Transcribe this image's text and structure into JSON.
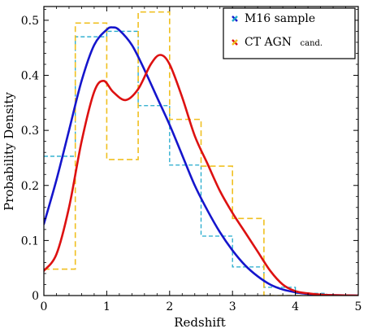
{
  "chart_data": {
    "type": "line",
    "xlabel": "Redshift",
    "ylabel": "Probability Density",
    "xlim": [
      0,
      5
    ],
    "ylim": [
      0,
      0.525
    ],
    "x_ticks": [
      "0",
      "1",
      "2",
      "3",
      "4",
      "5"
    ],
    "y_ticks": [
      "0",
      "0.1",
      "0.2",
      "0.3",
      "0.4",
      "0.5"
    ],
    "legend": {
      "placement": "top-right",
      "entries": [
        {
          "name": "M16 sample",
          "color": "#1515cc"
        },
        {
          "name_main": "CT AGN",
          "name_small": "cand.",
          "color": "#dd1111"
        }
      ]
    },
    "series": [
      {
        "name": "M16 sample",
        "kind": "smooth-curve",
        "color": "#1515cc",
        "x": [
          0,
          0.2,
          0.4,
          0.6,
          0.8,
          1.0,
          1.1,
          1.2,
          1.4,
          1.6,
          1.8,
          2.0,
          2.2,
          2.4,
          2.6,
          2.8,
          3.0,
          3.2,
          3.4,
          3.6,
          3.8,
          4.0,
          4.2,
          4.5,
          5.0
        ],
        "y": [
          0.13,
          0.21,
          0.3,
          0.39,
          0.455,
          0.483,
          0.487,
          0.482,
          0.455,
          0.41,
          0.36,
          0.31,
          0.255,
          0.2,
          0.155,
          0.115,
          0.082,
          0.055,
          0.035,
          0.02,
          0.011,
          0.006,
          0.003,
          0.001,
          0.0
        ]
      },
      {
        "name": "CT AGN cand.",
        "kind": "smooth-curve",
        "color": "#dd1111",
        "x": [
          0,
          0.2,
          0.4,
          0.6,
          0.8,
          0.95,
          1.1,
          1.3,
          1.5,
          1.7,
          1.85,
          2.0,
          2.2,
          2.4,
          2.6,
          2.8,
          3.0,
          3.2,
          3.4,
          3.6,
          3.8,
          4.0,
          4.2,
          4.5,
          5.0
        ],
        "y": [
          0.045,
          0.075,
          0.16,
          0.28,
          0.37,
          0.39,
          0.37,
          0.355,
          0.375,
          0.42,
          0.437,
          0.42,
          0.36,
          0.29,
          0.24,
          0.19,
          0.15,
          0.115,
          0.08,
          0.045,
          0.02,
          0.008,
          0.004,
          0.001,
          0.0
        ]
      },
      {
        "name": "M16 sample histogram",
        "kind": "step",
        "color": "#22aacc",
        "bin_edges": [
          0,
          0.5,
          1.0,
          1.5,
          2.0,
          2.5,
          3.0,
          3.5,
          4.0,
          4.5,
          5.0
        ],
        "values": [
          0.253,
          0.47,
          0.48,
          0.345,
          0.237,
          0.108,
          0.052,
          0.015,
          0.004,
          0.0
        ]
      },
      {
        "name": "CT AGN cand. histogram",
        "kind": "step",
        "color": "#f0c020",
        "bin_edges": [
          0,
          0.5,
          1.0,
          1.5,
          2.0,
          2.5,
          3.0,
          3.5,
          4.0,
          4.5,
          5.0
        ],
        "values": [
          0.048,
          0.495,
          0.247,
          0.515,
          0.32,
          0.235,
          0.14,
          0.0,
          0.0,
          0.0
        ]
      }
    ],
    "grid": false
  }
}
